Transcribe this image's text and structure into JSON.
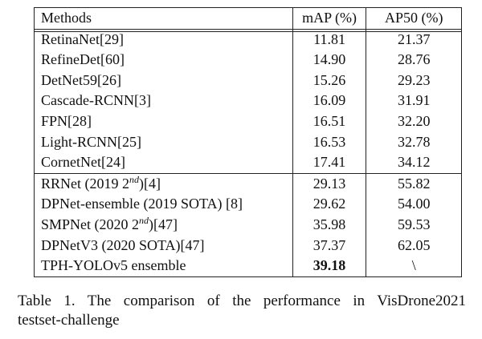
{
  "table": {
    "headers": [
      "Methods",
      "mAP (%)",
      "AP50 (%)"
    ],
    "group1": [
      {
        "method": "RetinaNet[29]",
        "map": "11.81",
        "ap50": "21.37"
      },
      {
        "method": "RefineDet[60]",
        "map": "14.90",
        "ap50": "28.76"
      },
      {
        "method": "DetNet59[26]",
        "map": "15.26",
        "ap50": "29.23"
      },
      {
        "method": "Cascade-RCNN[3]",
        "map": "16.09",
        "ap50": "31.91"
      },
      {
        "method": "FPN[28]",
        "map": "16.51",
        "ap50": "32.20"
      },
      {
        "method": "Light-RCNN[25]",
        "map": "16.53",
        "ap50": "32.78"
      },
      {
        "method": "CornetNet[24]",
        "map": "17.41",
        "ap50": "34.12"
      }
    ],
    "group2": [
      {
        "method_pre": "RRNet (2019 2",
        "method_sup": "nd",
        "method_post": ")[4]",
        "map": "29.13",
        "ap50": "55.82"
      },
      {
        "method": "DPNet-ensemble (2019 SOTA) [8]",
        "map": "29.62",
        "ap50": "54.00"
      },
      {
        "method_pre": "SMPNet (2020 2",
        "method_sup": "nd",
        "method_post": ")[47]",
        "map": "35.98",
        "ap50": "59.53"
      },
      {
        "method": "DPNetV3 (2020 SOTA)[47]",
        "map": "37.37",
        "ap50": "62.05"
      },
      {
        "method": "TPH-YOLOv5 ensemble",
        "map": "39.18",
        "ap50": "\\"
      }
    ]
  },
  "caption": {
    "line1": "Table 1. The comparison of the performance in VisDrone2021",
    "line2": "testset-challenge"
  }
}
